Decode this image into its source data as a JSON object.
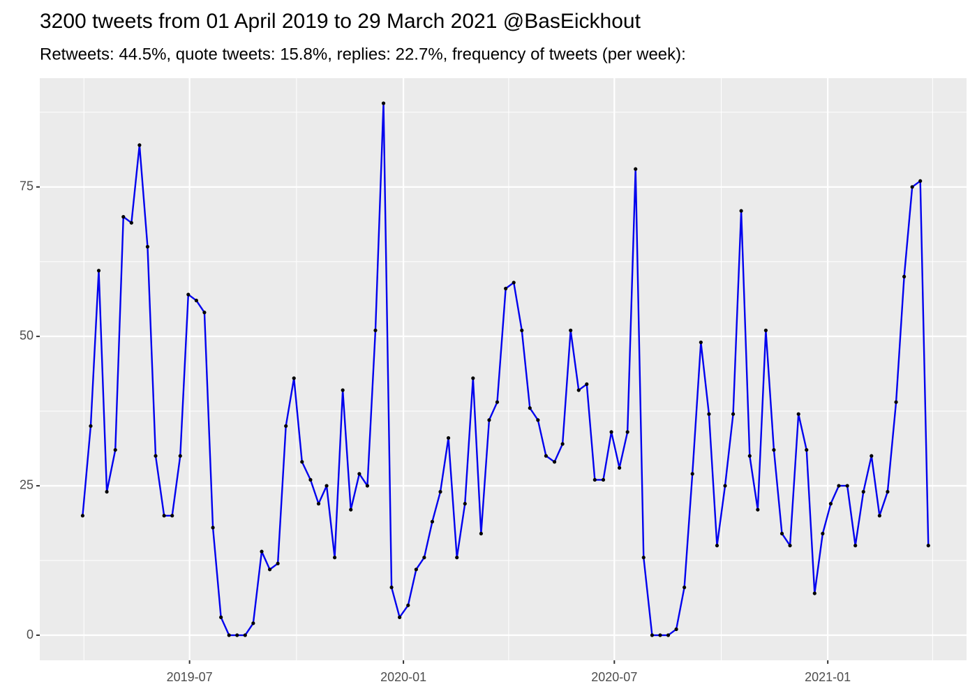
{
  "chart_data": {
    "type": "line",
    "title": "3200 tweets from 01 April 2019 to 29 March 2021 @BasEickhout",
    "subtitle": "Retweets: 44.5%, quote tweets: 15.8%, replies: 22.7%, frequency of tweets (per week):",
    "x": [
      2019.244,
      2019.263,
      2019.282,
      2019.301,
      2019.321,
      2019.34,
      2019.359,
      2019.378,
      2019.397,
      2019.416,
      2019.436,
      2019.455,
      2019.474,
      2019.493,
      2019.512,
      2019.531,
      2019.551,
      2019.57,
      2019.589,
      2019.608,
      2019.627,
      2019.646,
      2019.666,
      2019.685,
      2019.704,
      2019.723,
      2019.742,
      2019.761,
      2019.781,
      2019.8,
      2019.819,
      2019.838,
      2019.857,
      2019.876,
      2019.896,
      2019.915,
      2019.934,
      2019.953,
      2019.972,
      2019.991,
      2020.011,
      2020.03,
      2020.049,
      2020.068,
      2020.087,
      2020.106,
      2020.126,
      2020.145,
      2020.164,
      2020.183,
      2020.202,
      2020.221,
      2020.241,
      2020.26,
      2020.279,
      2020.298,
      2020.317,
      2020.336,
      2020.356,
      2020.375,
      2020.394,
      2020.413,
      2020.432,
      2020.451,
      2020.471,
      2020.49,
      2020.509,
      2020.528,
      2020.547,
      2020.566,
      2020.586,
      2020.605,
      2020.624,
      2020.643,
      2020.662,
      2020.681,
      2020.701,
      2020.72,
      2020.739,
      2020.758,
      2020.777,
      2020.796,
      2020.816,
      2020.835,
      2020.854,
      2020.873,
      2020.892,
      2020.911,
      2020.931,
      2020.95,
      2020.969,
      2020.988,
      2021.007,
      2021.026,
      2021.046,
      2021.065,
      2021.084,
      2021.103,
      2021.122,
      2021.141,
      2021.161,
      2021.18,
      2021.199,
      2021.218,
      2021.237
    ],
    "series": [
      {
        "color": "#0000ee",
        "point_color": "#000000",
        "values": [
          20,
          35,
          61,
          24,
          31,
          70,
          69,
          82,
          65,
          30,
          20,
          20,
          30,
          57,
          56,
          54,
          18,
          3,
          0,
          0,
          0,
          2,
          14,
          11,
          12,
          35,
          43,
          29,
          26,
          22,
          25,
          13,
          41,
          21,
          27,
          25,
          51,
          89,
          8,
          3,
          5,
          11,
          13,
          19,
          24,
          33,
          13,
          22,
          43,
          17,
          36,
          39,
          58,
          59,
          51,
          38,
          36,
          30,
          29,
          32,
          51,
          41,
          42,
          26,
          26,
          34,
          28,
          34,
          78,
          13,
          0,
          0,
          0,
          1,
          8,
          27,
          49,
          37,
          15,
          25,
          37,
          71,
          30,
          21,
          51,
          31,
          17,
          15,
          37,
          31,
          7,
          17,
          22,
          25,
          25,
          15,
          24,
          30,
          20,
          24,
          39,
          60,
          75,
          76,
          15
        ]
      }
    ],
    "xlim": [
      2019.143,
      2021.327
    ],
    "xticks": [
      {
        "value": 2019.496,
        "label": "2019-07"
      },
      {
        "value": 2020,
        "label": "2020-01"
      },
      {
        "value": 2020.497,
        "label": "2020-07"
      },
      {
        "value": 2021,
        "label": "2021-01"
      }
    ],
    "xminorticks": [
      2019.247,
      2019.748,
      2020.248,
      2020.749,
      2021.247
    ],
    "ylim": [
      -4.2,
      93.2
    ],
    "yticks": [
      0,
      25,
      50,
      75
    ],
    "yminorticks": [
      12.5,
      37.5,
      62.5,
      87.5
    ],
    "grid": true,
    "panel_color": "#ebebeb"
  }
}
